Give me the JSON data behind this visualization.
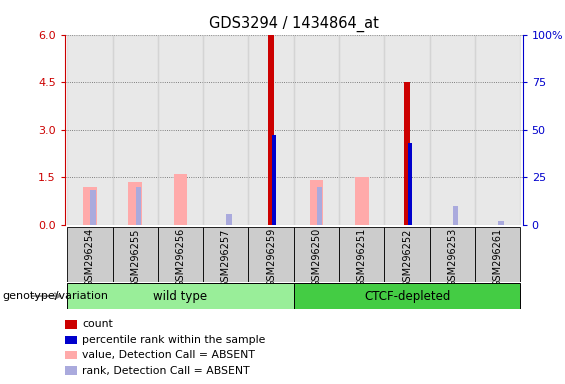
{
  "title": "GDS3294 / 1434864_at",
  "samples": [
    "GSM296254",
    "GSM296255",
    "GSM296256",
    "GSM296257",
    "GSM296259",
    "GSM296250",
    "GSM296251",
    "GSM296252",
    "GSM296253",
    "GSM296261"
  ],
  "groups": [
    "wild type",
    "wild type",
    "wild type",
    "wild type",
    "wild type",
    "CTCF-depleted",
    "CTCF-depleted",
    "CTCF-depleted",
    "CTCF-depleted",
    "CTCF-depleted"
  ],
  "count_values": [
    0.0,
    0.0,
    0.0,
    0.0,
    6.0,
    0.0,
    0.0,
    4.5,
    0.0,
    0.0
  ],
  "percentile_values": [
    0.0,
    0.0,
    0.0,
    0.0,
    47.0,
    0.0,
    0.0,
    43.0,
    0.0,
    0.0
  ],
  "value_absent": [
    1.2,
    1.35,
    1.6,
    0.0,
    0.0,
    1.4,
    1.5,
    0.0,
    0.0,
    0.0
  ],
  "rank_absent": [
    1.1,
    1.2,
    0.0,
    0.35,
    0.0,
    1.2,
    0.0,
    0.0,
    0.6,
    0.13
  ],
  "ylim_left": [
    0,
    6
  ],
  "ylim_right": [
    0,
    100
  ],
  "yticks_left": [
    0,
    1.5,
    3,
    4.5,
    6
  ],
  "yticks_right": [
    0,
    25,
    50,
    75,
    100
  ],
  "count_color": "#cc0000",
  "percentile_color": "#0000cc",
  "value_absent_color": "#ffaaaa",
  "rank_absent_color": "#aaaadd",
  "group_color_wt": "#99ee99",
  "group_color_ctcf": "#44cc44",
  "left_axis_color": "#cc0000",
  "right_axis_color": "#0000cc",
  "xlabel": "genotype/variation",
  "legend_items": [
    {
      "label": "count",
      "color": "#cc0000"
    },
    {
      "label": "percentile rank within the sample",
      "color": "#0000cc"
    },
    {
      "label": "value, Detection Call = ABSENT",
      "color": "#ffaaaa"
    },
    {
      "label": "rank, Detection Call = ABSENT",
      "color": "#aaaadd"
    }
  ]
}
